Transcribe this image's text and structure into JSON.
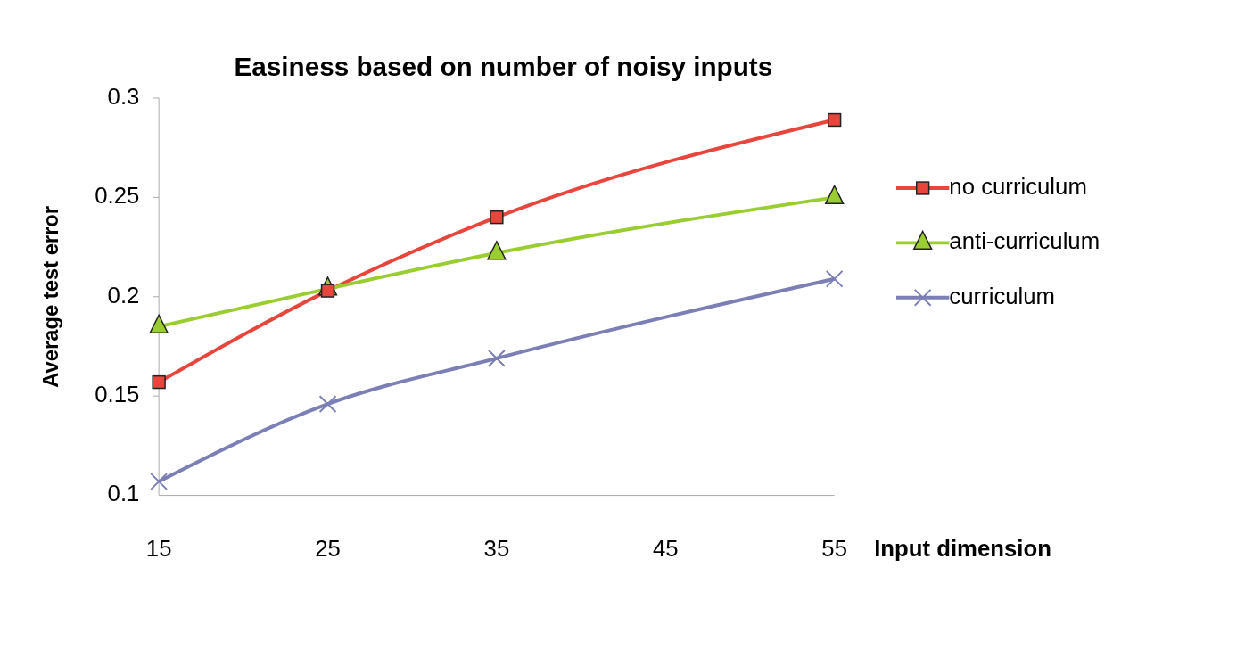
{
  "chart_data": {
    "type": "line",
    "title": "Easiness based on number of noisy inputs",
    "xlabel": "Input dimension",
    "ylabel": "Average test error",
    "x": [
      15,
      25,
      35,
      55
    ],
    "series": [
      {
        "name": "no curriculum",
        "color": "#e8453c",
        "marker": "square",
        "values": [
          0.157,
          0.203,
          0.24,
          0.289
        ]
      },
      {
        "name": "anti-curriculum",
        "color": "#9acd32",
        "marker": "triangle",
        "values": [
          0.185,
          0.204,
          0.222,
          0.25
        ]
      },
      {
        "name": "curriculum",
        "color": "#7b7fb5",
        "marker": "cross",
        "values": [
          0.107,
          0.146,
          0.169,
          0.209
        ]
      }
    ],
    "xlim": [
      15,
      55
    ],
    "xticks": [
      15,
      25,
      35,
      45,
      55
    ],
    "ylim": [
      0.1,
      0.3
    ],
    "yticks": [
      0.1,
      0.15,
      0.2,
      0.25,
      0.3
    ],
    "grid": false,
    "legend": "right"
  }
}
